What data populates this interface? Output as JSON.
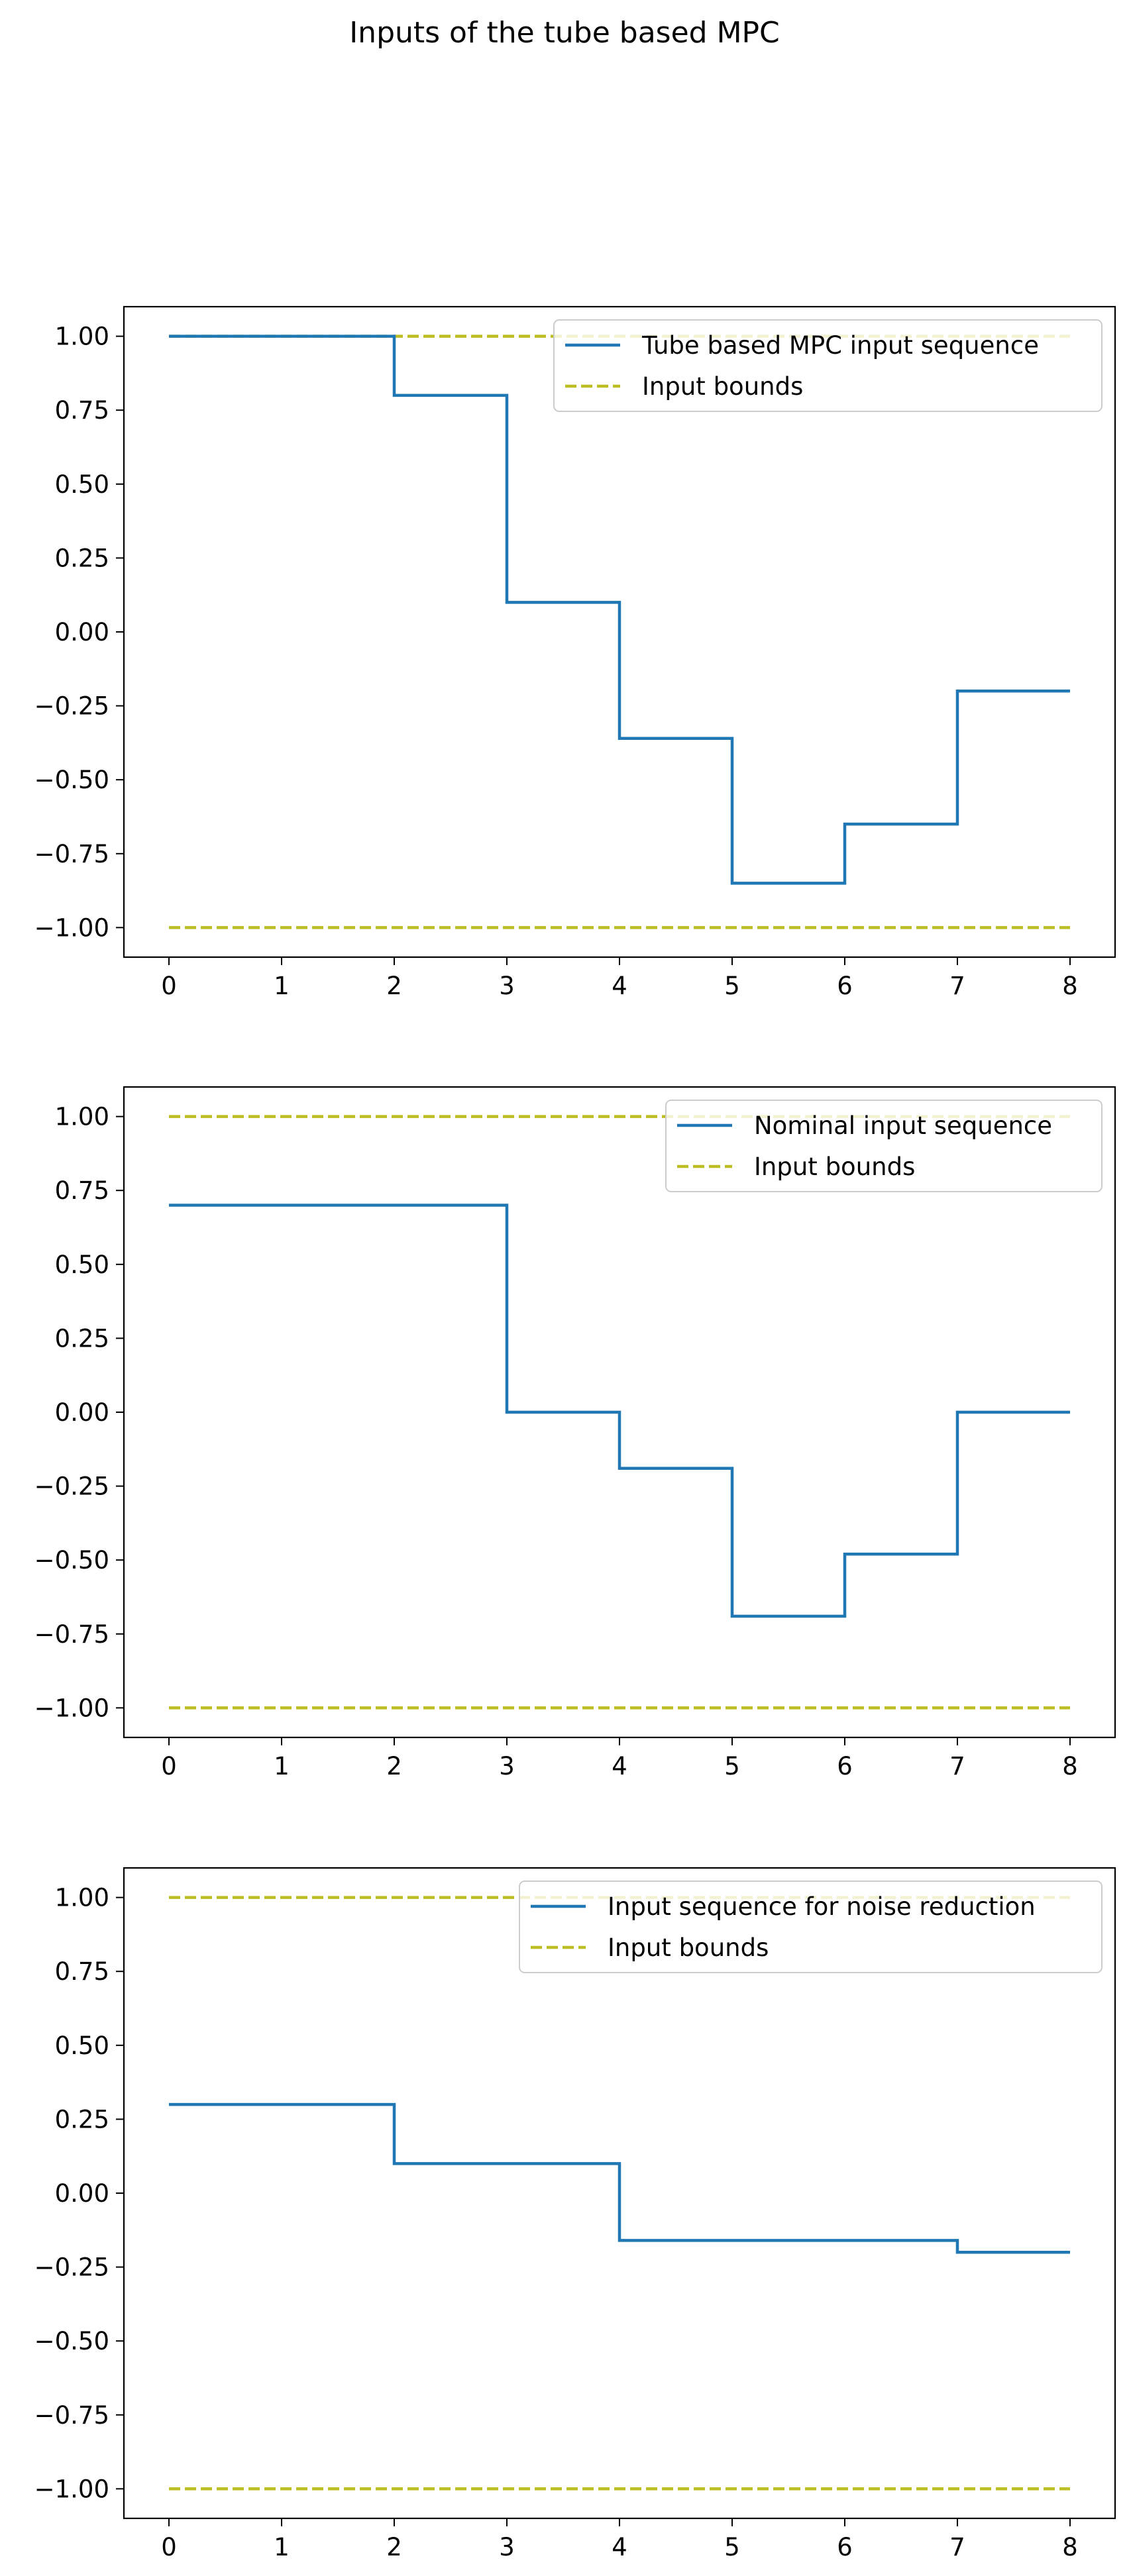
{
  "figure": {
    "title": "Inputs of the tube based MPC"
  },
  "colors": {
    "series": "#1f77b4",
    "bounds": "#bcbd22",
    "axis": "#000000",
    "legend_edge": "#cccccc"
  },
  "chart_data": [
    {
      "type": "line",
      "drawstyle": "steps-post",
      "x": [
        0,
        1,
        2,
        3,
        4,
        5,
        6,
        7,
        8
      ],
      "xlim": [
        -0.4,
        8.4
      ],
      "ylim": [
        -1.1,
        1.1
      ],
      "xticks": [
        0,
        1,
        2,
        3,
        4,
        5,
        6,
        7,
        8
      ],
      "xtick_labels": [
        "0",
        "1",
        "2",
        "3",
        "4",
        "5",
        "6",
        "7",
        "8"
      ],
      "yticks": [
        1.0,
        0.75,
        0.5,
        0.25,
        0.0,
        -0.25,
        -0.5,
        -0.75,
        -1.0
      ],
      "ytick_labels": [
        "1.00",
        "0.75",
        "0.50",
        "0.25",
        "0.00",
        "−0.25",
        "−0.50",
        "−0.75",
        "−1.00"
      ],
      "legend_position": "top-right",
      "series": [
        {
          "name": "Tube based MPC input sequence",
          "style": "solid",
          "values": [
            1.0,
            1.0,
            0.8,
            0.1,
            -0.36,
            -0.85,
            -0.65,
            -0.2,
            -0.2
          ]
        },
        {
          "name": "Input bounds",
          "style": "dashed",
          "upper": 1.0,
          "lower": -1.0
        }
      ]
    },
    {
      "type": "line",
      "drawstyle": "steps-post",
      "x": [
        0,
        1,
        2,
        3,
        4,
        5,
        6,
        7,
        8
      ],
      "xlim": [
        -0.4,
        8.4
      ],
      "ylim": [
        -1.1,
        1.1
      ],
      "xticks": [
        0,
        1,
        2,
        3,
        4,
        5,
        6,
        7,
        8
      ],
      "xtick_labels": [
        "0",
        "1",
        "2",
        "3",
        "4",
        "5",
        "6",
        "7",
        "8"
      ],
      "yticks": [
        1.0,
        0.75,
        0.5,
        0.25,
        0.0,
        -0.25,
        -0.5,
        -0.75,
        -1.0
      ],
      "ytick_labels": [
        "1.00",
        "0.75",
        "0.50",
        "0.25",
        "0.00",
        "−0.25",
        "−0.50",
        "−0.75",
        "−1.00"
      ],
      "legend_position": "top-right",
      "series": [
        {
          "name": "Nominal input sequence",
          "style": "solid",
          "values": [
            0.7,
            0.7,
            0.7,
            0.0,
            -0.19,
            -0.69,
            -0.48,
            0.0,
            0.0
          ]
        },
        {
          "name": "Input bounds",
          "style": "dashed",
          "upper": 1.0,
          "lower": -1.0
        }
      ]
    },
    {
      "type": "line",
      "drawstyle": "steps-post",
      "x": [
        0,
        1,
        2,
        3,
        4,
        5,
        6,
        7,
        8
      ],
      "xlim": [
        -0.4,
        8.4
      ],
      "ylim": [
        -1.1,
        1.1
      ],
      "xticks": [
        0,
        1,
        2,
        3,
        4,
        5,
        6,
        7,
        8
      ],
      "xtick_labels": [
        "0",
        "1",
        "2",
        "3",
        "4",
        "5",
        "6",
        "7",
        "8"
      ],
      "yticks": [
        1.0,
        0.75,
        0.5,
        0.25,
        0.0,
        -0.25,
        -0.5,
        -0.75,
        -1.0
      ],
      "ytick_labels": [
        "1.00",
        "0.75",
        "0.50",
        "0.25",
        "0.00",
        "−0.25",
        "−0.50",
        "−0.75",
        "−1.00"
      ],
      "legend_position": "top-right",
      "series": [
        {
          "name": "Input sequence for noise reduction",
          "style": "solid",
          "values": [
            0.3,
            0.3,
            0.1,
            0.1,
            -0.16,
            -0.16,
            -0.16,
            -0.2,
            -0.2
          ]
        },
        {
          "name": "Input bounds",
          "style": "dashed",
          "upper": 1.0,
          "lower": -1.0
        }
      ]
    }
  ]
}
